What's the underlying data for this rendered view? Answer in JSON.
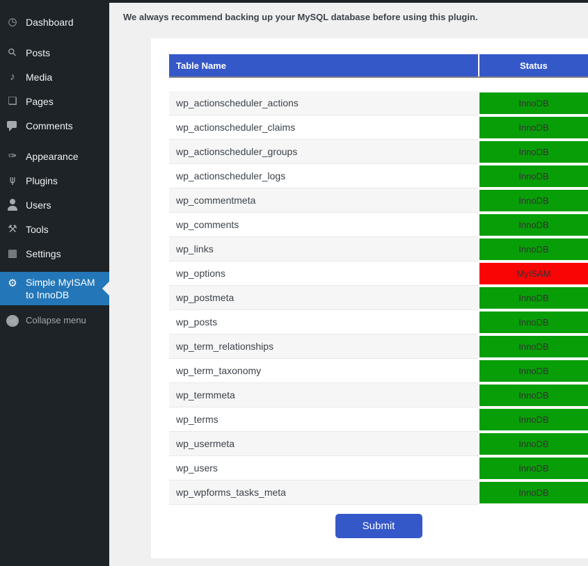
{
  "sidebar": {
    "items": [
      {
        "label": "Dashboard",
        "icon": "dashboard-icon"
      },
      {
        "label": "Posts",
        "icon": "posts-icon",
        "separator_before": true
      },
      {
        "label": "Media",
        "icon": "media-icon"
      },
      {
        "label": "Pages",
        "icon": "pages-icon"
      },
      {
        "label": "Comments",
        "icon": "comments-icon"
      },
      {
        "label": "Appearance",
        "icon": "appearance-icon",
        "separator_before": true
      },
      {
        "label": "Plugins",
        "icon": "plugins-icon"
      },
      {
        "label": "Users",
        "icon": "users-icon"
      },
      {
        "label": "Tools",
        "icon": "tools-icon"
      },
      {
        "label": "Settings",
        "icon": "settings-icon"
      },
      {
        "label": "Simple MyISAM to InnoDB",
        "icon": "gear-icon",
        "active": true,
        "separator_before": true
      },
      {
        "label": "Collapse menu",
        "icon": "collapse-icon",
        "dim": true
      }
    ]
  },
  "notice": {
    "text": "We always recommend backing up your MySQL database before using this plugin."
  },
  "table": {
    "columns": [
      "Table Name",
      "Status"
    ],
    "rows": [
      {
        "name": "wp_actionscheduler_actions",
        "status": "InnoDB"
      },
      {
        "name": "wp_actionscheduler_claims",
        "status": "InnoDB"
      },
      {
        "name": "wp_actionscheduler_groups",
        "status": "InnoDB"
      },
      {
        "name": "wp_actionscheduler_logs",
        "status": "InnoDB"
      },
      {
        "name": "wp_commentmeta",
        "status": "InnoDB"
      },
      {
        "name": "wp_comments",
        "status": "InnoDB"
      },
      {
        "name": "wp_links",
        "status": "InnoDB"
      },
      {
        "name": "wp_options",
        "status": "MyISAM"
      },
      {
        "name": "wp_postmeta",
        "status": "InnoDB"
      },
      {
        "name": "wp_posts",
        "status": "InnoDB"
      },
      {
        "name": "wp_term_relationships",
        "status": "InnoDB"
      },
      {
        "name": "wp_term_taxonomy",
        "status": "InnoDB"
      },
      {
        "name": "wp_termmeta",
        "status": "InnoDB"
      },
      {
        "name": "wp_terms",
        "status": "InnoDB"
      },
      {
        "name": "wp_usermeta",
        "status": "InnoDB"
      },
      {
        "name": "wp_users",
        "status": "InnoDB"
      },
      {
        "name": "wp_wpforms_tasks_meta",
        "status": "InnoDB"
      }
    ]
  },
  "submit_label": "Submit",
  "colors": {
    "header_blue": "#3558c9",
    "button_blue": "#3558c9",
    "engine_innodb_green": "#089e08",
    "engine_myisam_red": "#fa0505",
    "active_menu_blue": "#2377b8",
    "status_text": "#333333"
  }
}
